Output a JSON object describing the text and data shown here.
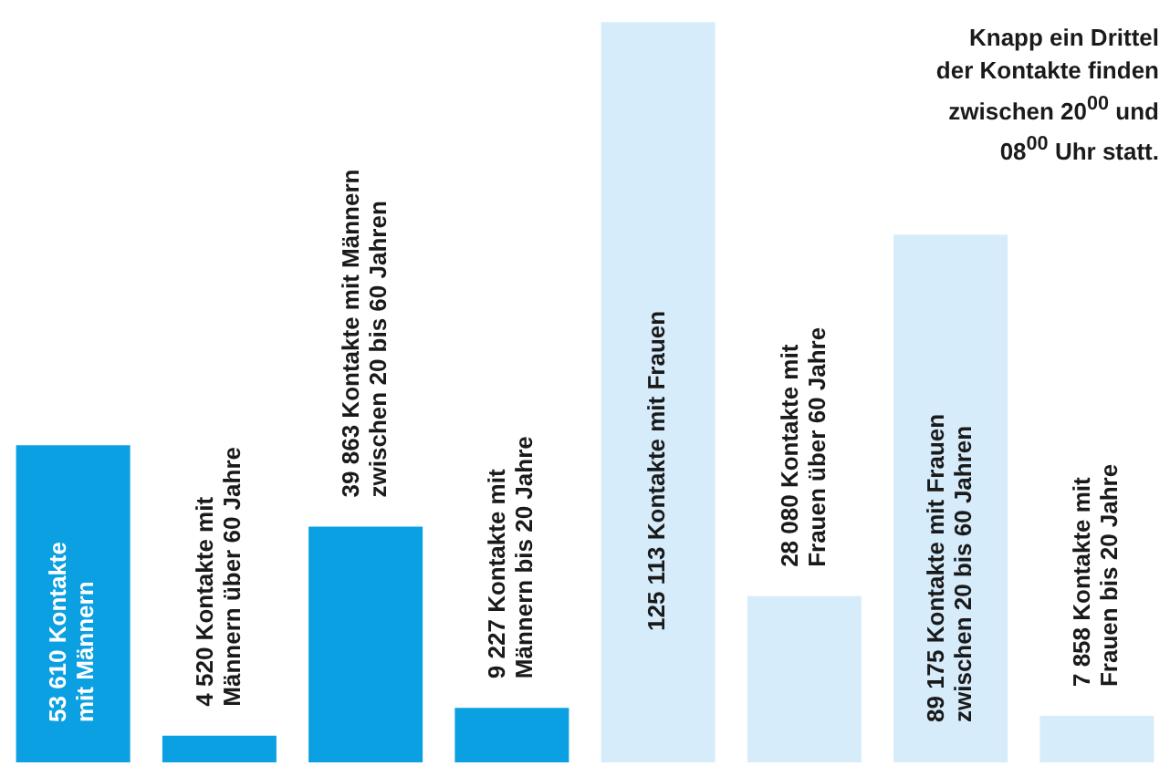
{
  "chart_data": {
    "type": "bar",
    "categories": [
      null,
      null,
      null,
      null,
      null,
      null,
      null,
      null
    ],
    "values": [
      53610,
      4520,
      39863,
      9227,
      125113,
      28080,
      89175,
      7858
    ],
    "colors": [
      "#0aa0e2",
      "#0aa0e2",
      "#0aa0e2",
      "#0aa0e2",
      "#d6ecfb",
      "#d6ecfb",
      "#d6ecfb",
      "#d6ecfb"
    ],
    "value_labels": [
      "53 610 Kontakte\nmit Männern",
      "4 520 Kontakte mit\nMännern über 60 Jahre",
      "39 863 Kontakte mit Männern\nzwischen 20 bis 60 Jahren",
      "9 227 Kontakte mit\nMännern bis 20 Jahre",
      "125 113 Kontakte mit Frauen",
      "28 080 Kontakte mit\nFrauen über 60 Jahre",
      "89 175 Kontakte mit Frauen\nzwischen 20 bis 60 Jahren",
      "7 858 Kontakte mit\nFrauen bis 20 Jahre"
    ],
    "tick_labels": false,
    "annotations": [
      "Knapp ein Drittel\nder Kontakte finden\nzwischen 20$^{00}$ und\n08$^{00}$ Uhr statt."
    ]
  }
}
